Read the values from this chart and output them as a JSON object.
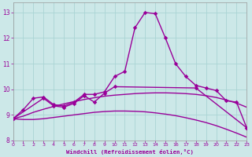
{
  "xlabel": "Windchill (Refroidissement éolien,°C)",
  "background_color": "#cce8e8",
  "grid_color": "#aad4d4",
  "line_color": "#990099",
  "x_values": [
    0,
    1,
    2,
    3,
    4,
    5,
    6,
    7,
    8,
    9,
    10,
    11,
    12,
    13,
    14,
    15,
    16,
    17,
    18,
    19,
    20,
    21,
    22,
    23
  ],
  "ylim": [
    8.0,
    13.4
  ],
  "xlim": [
    0,
    23
  ],
  "yticks": [
    8,
    9,
    10,
    11,
    12,
    13
  ],
  "line_spiky": [
    8.85,
    9.2,
    9.65,
    9.7,
    9.4,
    9.35,
    9.5,
    9.8,
    9.8,
    9.9,
    10.5,
    10.7,
    12.4,
    13.0,
    12.95,
    12.0,
    11.0,
    10.5,
    10.15,
    10.05,
    9.95,
    9.55,
    9.5,
    8.5
  ],
  "line_mid_x": [
    0,
    3,
    4,
    5,
    6,
    7,
    8,
    9,
    10,
    18,
    23
  ],
  "line_mid_y": [
    8.85,
    9.65,
    9.35,
    9.3,
    9.45,
    9.75,
    9.5,
    9.85,
    10.1,
    10.05,
    8.5
  ],
  "smooth_high": [
    8.85,
    8.95,
    9.1,
    9.22,
    9.33,
    9.43,
    9.52,
    9.6,
    9.67,
    9.73,
    9.77,
    9.8,
    9.83,
    9.85,
    9.86,
    9.86,
    9.85,
    9.83,
    9.8,
    9.75,
    9.68,
    9.58,
    9.46,
    9.3
  ],
  "smooth_low": [
    8.85,
    8.82,
    8.82,
    8.85,
    8.9,
    8.95,
    9.0,
    9.05,
    9.1,
    9.13,
    9.15,
    9.15,
    9.14,
    9.12,
    9.08,
    9.03,
    8.97,
    8.89,
    8.8,
    8.7,
    8.58,
    8.44,
    8.29,
    8.13
  ]
}
